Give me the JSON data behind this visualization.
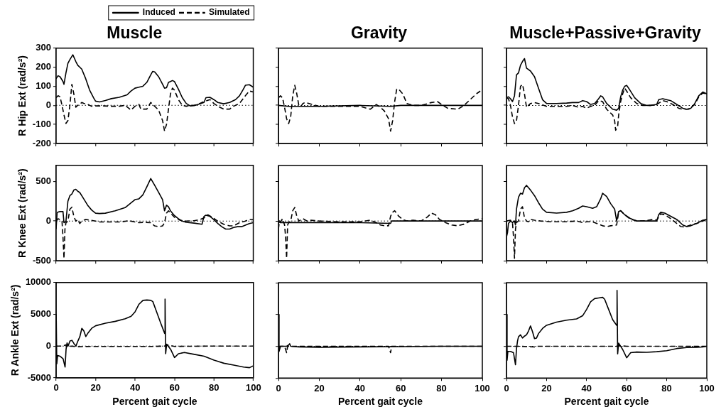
{
  "chart_data": [
    {
      "type": "line",
      "title": "Muscle",
      "ylabel": "R Hip Ext (rad/s²)",
      "xlim": [
        0,
        100
      ],
      "xticks": [
        0,
        20,
        40,
        60,
        80,
        100
      ],
      "ylim": [
        -200,
        300
      ],
      "yticks": [
        -200,
        -100,
        0,
        100,
        200,
        300
      ],
      "tick_labels": "y",
      "grid": false,
      "marker": "none",
      "legend": "top right",
      "ref_lines": [
        {
          "axis": "y",
          "value": 0,
          "line_style": "dotted"
        }
      ],
      "series": [
        {
          "name": "Induced",
          "color": "#000000",
          "line_style": "solid",
          "x": [
            0,
            1,
            2,
            3.5,
            4,
            5,
            6,
            7,
            8.5,
            10,
            11,
            13,
            15,
            17,
            19,
            20,
            22,
            25,
            28,
            32,
            36,
            38,
            40,
            42,
            44,
            46,
            48,
            49,
            50,
            52,
            54,
            55,
            56,
            57,
            58,
            59,
            60,
            62,
            64,
            66,
            68,
            70,
            72,
            75,
            76,
            78,
            80,
            82,
            85,
            88,
            91,
            93,
            95,
            96,
            98,
            100
          ],
          "values": [
            140,
            155,
            150,
            125,
            110,
            170,
            220,
            240,
            265,
            230,
            210,
            190,
            140,
            80,
            40,
            22,
            18,
            25,
            35,
            42,
            55,
            75,
            90,
            95,
            100,
            120,
            160,
            178,
            175,
            150,
            110,
            90,
            92,
            120,
            125,
            130,
            125,
            85,
            40,
            10,
            -3,
            -2,
            5,
            15,
            40,
            42,
            30,
            15,
            8,
            15,
            30,
            50,
            85,
            105,
            108,
            95
          ]
        },
        {
          "name": "Simulated",
          "color": "#000000",
          "line_style": "dashed",
          "x": [
            0,
            1,
            2,
            3,
            4,
            5,
            6,
            7,
            8,
            9,
            10,
            11,
            12,
            13,
            14,
            16,
            18,
            20,
            24,
            28,
            32,
            35,
            38,
            40,
            42,
            43,
            46,
            48,
            50,
            52,
            54,
            55,
            56,
            57,
            58,
            59,
            60,
            62,
            64,
            66,
            68,
            70,
            72,
            75,
            78,
            80,
            82,
            85,
            88,
            90,
            93,
            96,
            98,
            100
          ],
          "values": [
            40,
            50,
            45,
            0,
            -50,
            -95,
            -80,
            0,
            110,
            60,
            -10,
            0,
            5,
            15,
            10,
            5,
            -5,
            -3,
            -3,
            -5,
            -5,
            0,
            -25,
            -5,
            5,
            -20,
            -20,
            15,
            -5,
            -25,
            -80,
            -135,
            -100,
            -20,
            60,
            90,
            80,
            30,
            0,
            -5,
            0,
            0,
            5,
            20,
            30,
            10,
            -5,
            -20,
            -20,
            -5,
            10,
            50,
            75,
            70
          ]
        }
      ]
    },
    {
      "type": "line",
      "title": "Gravity",
      "xlim": [
        0,
        100
      ],
      "xticks": [
        0,
        20,
        40,
        60,
        80,
        100
      ],
      "ylim": [
        -200,
        300
      ],
      "yticks": [
        -200,
        -100,
        0,
        100,
        200,
        300
      ],
      "tick_labels": false,
      "grid": false,
      "marker": "none",
      "ref_lines": [
        {
          "axis": "y",
          "value": 0,
          "line_style": "dotted"
        }
      ],
      "series": [
        {
          "color": "#000000",
          "line_style": "solid",
          "x": [
            0,
            5,
            10,
            20,
            40,
            55,
            60,
            100
          ],
          "values": [
            0,
            -5,
            -5,
            -5,
            0,
            -5,
            0,
            0
          ]
        },
        {
          "color": "#000000",
          "line_style": "dashed",
          "x": [
            0,
            1,
            2,
            3,
            4,
            5,
            6,
            7,
            8,
            9,
            10,
            11,
            12,
            13,
            15,
            20,
            30,
            40,
            45,
            48,
            50,
            52,
            54,
            55,
            56,
            57,
            58,
            59,
            61,
            63,
            66,
            70,
            75,
            78,
            80,
            83,
            88,
            91,
            94,
            97,
            99
          ],
          "values": [
            40,
            50,
            40,
            -10,
            -70,
            -95,
            -60,
            50,
            105,
            60,
            0,
            -5,
            10,
            15,
            10,
            -5,
            -5,
            -5,
            -20,
            5,
            -10,
            -30,
            -70,
            -135,
            -80,
            20,
            85,
            85,
            60,
            10,
            0,
            0,
            15,
            20,
            5,
            -15,
            -20,
            0,
            30,
            60,
            75
          ]
        }
      ]
    },
    {
      "type": "line",
      "title": "Muscle+Passive+Gravity",
      "xlim": [
        0,
        100
      ],
      "xticks": [
        0,
        20,
        40,
        60,
        80,
        100
      ],
      "ylim": [
        -200,
        300
      ],
      "yticks": [
        -200,
        -100,
        0,
        100,
        200,
        300
      ],
      "tick_labels": false,
      "grid": false,
      "marker": "none",
      "ref_lines": [
        {
          "axis": "y",
          "value": 0,
          "line_style": "dotted"
        }
      ],
      "series": [
        {
          "color": "#000000",
          "line_style": "solid",
          "x": [
            0,
            1,
            2,
            3,
            4,
            5,
            6,
            7,
            8,
            9,
            10,
            12,
            14,
            16,
            18,
            20,
            25,
            30,
            33,
            36,
            38,
            40,
            42,
            44,
            46,
            47,
            48,
            50,
            53,
            55,
            56,
            57,
            58,
            59,
            60,
            61,
            64,
            67,
            70,
            72,
            75,
            76,
            78,
            82,
            85,
            88,
            90,
            92,
            94,
            96,
            98,
            100
          ],
          "values": [
            40,
            45,
            35,
            20,
            50,
            160,
            170,
            210,
            230,
            245,
            195,
            180,
            150,
            90,
            30,
            10,
            10,
            12,
            15,
            15,
            25,
            20,
            5,
            10,
            35,
            50,
            45,
            10,
            -20,
            -25,
            -15,
            45,
            80,
            100,
            105,
            90,
            40,
            10,
            0,
            0,
            5,
            30,
            35,
            25,
            5,
            -15,
            -20,
            -15,
            10,
            50,
            70,
            60
          ]
        },
        {
          "color": "#000000",
          "line_style": "dashed",
          "x": [
            0,
            1,
            2,
            3,
            4,
            5,
            6,
            7,
            8,
            9,
            10,
            11,
            12,
            14,
            16,
            20,
            25,
            30,
            33,
            36,
            38,
            40,
            42,
            44,
            46,
            48,
            50,
            53,
            54,
            54.5,
            55.5,
            56,
            57,
            58,
            59,
            60,
            62,
            65,
            68,
            72,
            75,
            78,
            80,
            83,
            86,
            88,
            91,
            94,
            96,
            98,
            100
          ],
          "values": [
            40,
            35,
            0,
            -60,
            -95,
            -80,
            0,
            100,
            110,
            60,
            -10,
            0,
            10,
            15,
            10,
            -5,
            -5,
            -5,
            0,
            -10,
            -5,
            -15,
            -5,
            0,
            25,
            20,
            -20,
            -50,
            -80,
            -130,
            -110,
            -50,
            20,
            60,
            90,
            75,
            40,
            10,
            0,
            0,
            5,
            25,
            20,
            5,
            -15,
            -20,
            -20,
            5,
            45,
            65,
            60
          ]
        }
      ]
    },
    {
      "type": "line",
      "ylabel": "R Knee Ext (rad/s²)",
      "xlim": [
        0,
        100
      ],
      "xticks": [
        0,
        20,
        40,
        60,
        80,
        100
      ],
      "ylim": [
        -500,
        700
      ],
      "yticks": [
        -500,
        0,
        500
      ],
      "tick_labels": "y",
      "grid": false,
      "marker": "none",
      "ref_lines": [
        {
          "axis": "y",
          "value": 0,
          "line_style": "dotted"
        }
      ],
      "series": [
        {
          "color": "#000000",
          "line_style": "solid",
          "x": [
            0,
            0.5,
            1,
            2,
            3.5,
            4,
            5,
            6,
            7,
            8,
            9,
            10,
            11,
            12,
            14,
            16,
            18,
            20,
            22,
            25,
            30,
            35,
            38,
            40,
            42,
            44,
            46,
            48,
            50,
            52,
            54,
            55,
            56,
            57,
            58,
            60,
            62,
            64,
            66,
            70,
            74,
            75,
            76,
            78,
            80,
            82,
            84,
            86,
            88,
            90,
            92,
            94,
            96,
            98,
            100
          ],
          "values": [
            -100,
            100,
            115,
            120,
            120,
            -20,
            0,
            250,
            320,
            340,
            390,
            400,
            375,
            360,
            280,
            200,
            140,
            100,
            95,
            100,
            130,
            170,
            230,
            270,
            280,
            330,
            430,
            535,
            450,
            360,
            270,
            130,
            200,
            180,
            130,
            70,
            30,
            0,
            -15,
            -25,
            -40,
            60,
            75,
            60,
            20,
            -30,
            -70,
            -100,
            -100,
            -80,
            -70,
            -70,
            -50,
            -30,
            -20
          ]
        },
        {
          "color": "#000000",
          "line_style": "dashed",
          "x": [
            0,
            1,
            2,
            3,
            3.5,
            4,
            4.5,
            5,
            6,
            7,
            8,
            9,
            10,
            11,
            12,
            13,
            15,
            18,
            22,
            28,
            33,
            37,
            40,
            42,
            45,
            48,
            50,
            52,
            54,
            55,
            56,
            57,
            58,
            60,
            63,
            66,
            70,
            73,
            75,
            77,
            79,
            82,
            85,
            88,
            90,
            93,
            96,
            98,
            100
          ],
          "values": [
            0,
            30,
            20,
            0,
            -200,
            -470,
            -100,
            -20,
            0,
            150,
            175,
            60,
            0,
            20,
            -30,
            0,
            20,
            10,
            -10,
            -10,
            -10,
            5,
            -10,
            -20,
            -15,
            -20,
            -60,
            -70,
            -60,
            -20,
            100,
            130,
            100,
            50,
            10,
            0,
            5,
            20,
            40,
            80,
            50,
            0,
            -40,
            -60,
            -60,
            -20,
            0,
            20,
            20
          ]
        }
      ]
    },
    {
      "type": "line",
      "xlim": [
        0,
        100
      ],
      "xticks": [
        0,
        20,
        40,
        60,
        80,
        100
      ],
      "ylim": [
        -500,
        700
      ],
      "yticks": [
        -500,
        0,
        500
      ],
      "tick_labels": false,
      "grid": false,
      "marker": "none",
      "ref_lines": [
        {
          "axis": "y",
          "value": 0,
          "line_style": "dotted"
        }
      ],
      "series": [
        {
          "color": "#000000",
          "line_style": "solid",
          "x": [
            0,
            1,
            5,
            10,
            20,
            40,
            55,
            55.5,
            60,
            100
          ],
          "values": [
            -10,
            -20,
            -20,
            -20,
            -20,
            -20,
            -30,
            0,
            0,
            0
          ]
        },
        {
          "color": "#000000",
          "line_style": "dashed",
          "x": [
            0,
            0.5,
            1,
            2,
            3,
            3.5,
            4,
            4.5,
            5,
            6,
            7,
            8,
            9,
            10,
            12,
            14,
            16,
            20,
            30,
            40,
            45,
            48,
            50,
            52,
            54,
            55,
            56,
            57,
            59,
            61,
            63,
            66,
            70,
            73,
            75,
            77,
            79,
            82,
            85,
            88,
            91,
            94,
            97,
            100
          ],
          "values": [
            -100,
            0,
            -10,
            30,
            -50,
            -200,
            -470,
            -50,
            -20,
            0,
            130,
            170,
            60,
            0,
            30,
            0,
            10,
            0,
            -10,
            -10,
            10,
            -20,
            -50,
            -60,
            -60,
            60,
            110,
            130,
            60,
            20,
            0,
            10,
            0,
            50,
            100,
            80,
            20,
            -20,
            -50,
            -60,
            -40,
            0,
            20,
            30
          ]
        }
      ]
    },
    {
      "type": "line",
      "xlim": [
        0,
        100
      ],
      "xticks": [
        0,
        20,
        40,
        60,
        80,
        100
      ],
      "ylim": [
        -500,
        700
      ],
      "yticks": [
        -500,
        0,
        500
      ],
      "tick_labels": false,
      "grid": false,
      "marker": "none",
      "ref_lines": [
        {
          "axis": "y",
          "value": 0,
          "line_style": "dotted"
        }
      ],
      "series": [
        {
          "color": "#000000",
          "line_style": "solid",
          "x": [
            0,
            0.5,
            1,
            2,
            3,
            4,
            4.5,
            5,
            6,
            7,
            8,
            9,
            10,
            11,
            12,
            14,
            16,
            18,
            20,
            25,
            30,
            33,
            36,
            38,
            40,
            43,
            45,
            47,
            48,
            50,
            52,
            54,
            55,
            56,
            57,
            59,
            62,
            65,
            70,
            75,
            76,
            77,
            79,
            82,
            85,
            88,
            90,
            92,
            95,
            98,
            100
          ],
          "values": [
            -200,
            -150,
            -30,
            0,
            -20,
            0,
            -50,
            150,
            300,
            350,
            340,
            420,
            450,
            420,
            390,
            320,
            230,
            150,
            110,
            100,
            110,
            130,
            160,
            190,
            180,
            160,
            180,
            280,
            350,
            310,
            220,
            150,
            0,
            120,
            130,
            80,
            30,
            0,
            0,
            0,
            80,
            110,
            100,
            60,
            20,
            -50,
            -70,
            -60,
            -30,
            10,
            20
          ]
        },
        {
          "color": "#000000",
          "line_style": "dashed",
          "x": [
            0,
            2,
            3,
            3.5,
            4,
            4.5,
            5,
            6,
            7,
            8,
            9,
            10,
            11,
            12,
            14,
            17,
            22,
            30,
            35,
            38,
            40,
            43,
            45,
            48,
            50,
            52,
            55,
            56,
            57,
            59,
            62,
            66,
            70,
            73,
            75,
            77,
            79,
            82,
            85,
            87,
            89,
            92,
            95,
            98,
            100
          ],
          "values": [
            0,
            10,
            -20,
            -200,
            -470,
            -100,
            -20,
            0,
            150,
            180,
            40,
            0,
            -10,
            20,
            10,
            0,
            -10,
            -10,
            0,
            -20,
            -10,
            -10,
            -30,
            -60,
            -70,
            -60,
            -50,
            110,
            130,
            80,
            20,
            0,
            5,
            20,
            10,
            90,
            80,
            30,
            -30,
            -70,
            -75,
            -50,
            -30,
            0,
            20
          ]
        }
      ]
    },
    {
      "type": "line",
      "ylabel": "R Ankle Ext (rad/s²)",
      "xlabel": "Percent gait cycle",
      "xlim": [
        0,
        100
      ],
      "xticks": [
        0,
        20,
        40,
        60,
        80,
        100
      ],
      "ylim": [
        -5000,
        10000
      ],
      "yticks": [
        -5000,
        0,
        5000,
        10000
      ],
      "grid": false,
      "marker": "none",
      "ref_lines": [
        {
          "axis": "y",
          "value": 0,
          "line_style": "dotted"
        }
      ],
      "series": [
        {
          "color": "#000000",
          "line_style": "solid",
          "x": [
            0,
            0.3,
            0.7,
            2,
            3.5,
            4.5,
            5,
            5.5,
            6,
            7,
            8,
            9,
            10,
            11,
            12,
            13,
            14,
            15,
            16,
            18,
            20,
            25,
            30,
            35,
            38,
            40,
            42,
            44,
            46,
            48,
            49,
            51,
            53,
            55,
            55.2,
            55.5,
            56,
            58,
            60,
            62,
            65,
            70,
            75,
            80,
            85,
            90,
            95,
            98,
            100
          ],
          "values": [
            5000,
            -2800,
            -1500,
            -1600,
            -2000,
            -3300,
            -500,
            500,
            0,
            800,
            900,
            400,
            0,
            800,
            1500,
            2800,
            2400,
            1500,
            2000,
            2800,
            3200,
            3600,
            3900,
            4300,
            4700,
            5400,
            6600,
            7200,
            7250,
            7200,
            7000,
            5300,
            3600,
            2000,
            7400,
            -1200,
            300,
            -500,
            -1800,
            -1200,
            -1000,
            -1300,
            -1600,
            -2200,
            -2700,
            -3000,
            -3300,
            -3400,
            -3100
          ]
        },
        {
          "color": "#000000",
          "line_style": "dashed",
          "x": [
            0,
            3,
            5,
            5.2,
            8,
            10,
            20,
            30,
            40,
            50,
            55,
            56,
            60,
            80,
            100
          ],
          "values": [
            0,
            0,
            200,
            -100,
            0,
            -100,
            -50,
            -50,
            -50,
            -50,
            0,
            200,
            -50,
            0,
            0
          ]
        }
      ]
    },
    {
      "type": "line",
      "xlabel": "Percent gait cycle",
      "xlim": [
        0,
        100
      ],
      "xticks": [
        0,
        20,
        40,
        60,
        80,
        100
      ],
      "ylim": [
        -5000,
        10000
      ],
      "yticks": [
        -5000,
        0,
        5000,
        10000
      ],
      "tick_labels": "x",
      "grid": false,
      "marker": "none",
      "ref_lines": [
        {
          "axis": "y",
          "value": 0,
          "line_style": "dotted"
        }
      ],
      "series": [
        {
          "color": "#000000",
          "line_style": "solid",
          "x": [
            0,
            0.3,
            1,
            4,
            5,
            5.5,
            6,
            10,
            20,
            40,
            60,
            80,
            100
          ],
          "values": [
            5000,
            -800,
            0,
            0,
            200,
            400,
            0,
            -100,
            -150,
            -100,
            -50,
            0,
            0
          ]
        },
        {
          "color": "#000000",
          "line_style": "dashed",
          "x": [
            0,
            3,
            4,
            4.5,
            20,
            54,
            55,
            55.5,
            100
          ],
          "values": [
            0,
            0,
            -1000,
            0,
            0,
            0,
            -1000,
            0,
            0
          ]
        }
      ]
    },
    {
      "type": "line",
      "xlabel": "Percent gait cycle",
      "xlim": [
        0,
        100
      ],
      "xticks": [
        0,
        20,
        40,
        60,
        80,
        100
      ],
      "ylim": [
        -5000,
        10000
      ],
      "yticks": [
        -5000,
        0,
        5000,
        10000
      ],
      "tick_labels": "x",
      "grid": false,
      "marker": "none",
      "ref_lines": [
        {
          "axis": "y",
          "value": 0,
          "line_style": "dotted"
        }
      ],
      "series": [
        {
          "color": "#000000",
          "line_style": "solid",
          "x": [
            0,
            0.3,
            0.7,
            2,
            3.5,
            4.5,
            5,
            5.5,
            6,
            7,
            8,
            9,
            10,
            11,
            12,
            13,
            14,
            15,
            16,
            18,
            20,
            25,
            30,
            35,
            38,
            40,
            42,
            44,
            46,
            48,
            49,
            51,
            53,
            55,
            55.2,
            55.5,
            56,
            58,
            60,
            62,
            65,
            70,
            75,
            80,
            85,
            90,
            95,
            98,
            100
          ],
          "values": [
            5000,
            -2200,
            -800,
            -800,
            -1000,
            -2900,
            -400,
            800,
            1500,
            1800,
            1300,
            1600,
            1800,
            2400,
            3200,
            2300,
            1200,
            1300,
            2000,
            2800,
            3300,
            3800,
            4100,
            4300,
            4800,
            5800,
            7000,
            7500,
            7600,
            7700,
            7400,
            5800,
            4200,
            3300,
            8800,
            -1200,
            500,
            -500,
            -1800,
            -1000,
            -900,
            -950,
            -850,
            -700,
            -350,
            -200,
            -150,
            -100,
            0
          ]
        },
        {
          "color": "#000000",
          "line_style": "dashed",
          "x": [
            0,
            3,
            5,
            7,
            14,
            15,
            30,
            55,
            56,
            60,
            100
          ],
          "values": [
            0,
            0,
            0,
            0,
            -100,
            0,
            0,
            0,
            100,
            0,
            0
          ]
        }
      ]
    }
  ]
}
